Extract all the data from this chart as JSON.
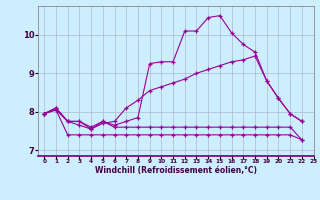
{
  "xlabel": "Windchill (Refroidissement éolien,°C)",
  "bg_color": "#cceeff",
  "line_color": "#990099",
  "grid_color": "#aabbcc",
  "xlim": [
    -0.5,
    23
  ],
  "ylim": [
    6.85,
    10.75
  ],
  "xticks": [
    0,
    1,
    2,
    3,
    4,
    5,
    6,
    7,
    8,
    9,
    10,
    11,
    12,
    13,
    14,
    15,
    16,
    17,
    18,
    19,
    20,
    21,
    22,
    23
  ],
  "yticks": [
    7,
    8,
    9,
    10
  ],
  "line1": [
    7.95,
    8.1,
    7.75,
    7.75,
    7.55,
    7.75,
    7.65,
    7.75,
    7.85,
    9.25,
    9.3,
    9.3,
    10.1,
    10.1,
    10.45,
    10.5,
    10.05,
    9.75,
    9.55,
    8.8,
    8.35,
    7.95,
    7.75
  ],
  "line2": [
    7.95,
    8.1,
    7.75,
    7.65,
    7.55,
    7.7,
    7.75,
    8.1,
    8.3,
    8.55,
    8.65,
    8.75,
    8.85,
    9.0,
    9.1,
    9.2,
    9.3,
    9.35,
    9.45,
    8.8,
    8.35,
    7.95,
    7.75
  ],
  "line3": [
    7.95,
    8.05,
    7.4,
    7.4,
    7.4,
    7.4,
    7.4,
    7.4,
    7.4,
    7.4,
    7.4,
    7.4,
    7.4,
    7.4,
    7.4,
    7.4,
    7.4,
    7.4,
    7.4,
    7.4,
    7.4,
    7.4,
    7.27
  ],
  "line4": [
    7.95,
    8.05,
    7.75,
    7.75,
    7.6,
    7.75,
    7.6,
    7.6,
    7.6,
    7.6,
    7.6,
    7.6,
    7.6,
    7.6,
    7.6,
    7.6,
    7.6,
    7.6,
    7.6,
    7.6,
    7.6,
    7.6,
    7.27
  ]
}
